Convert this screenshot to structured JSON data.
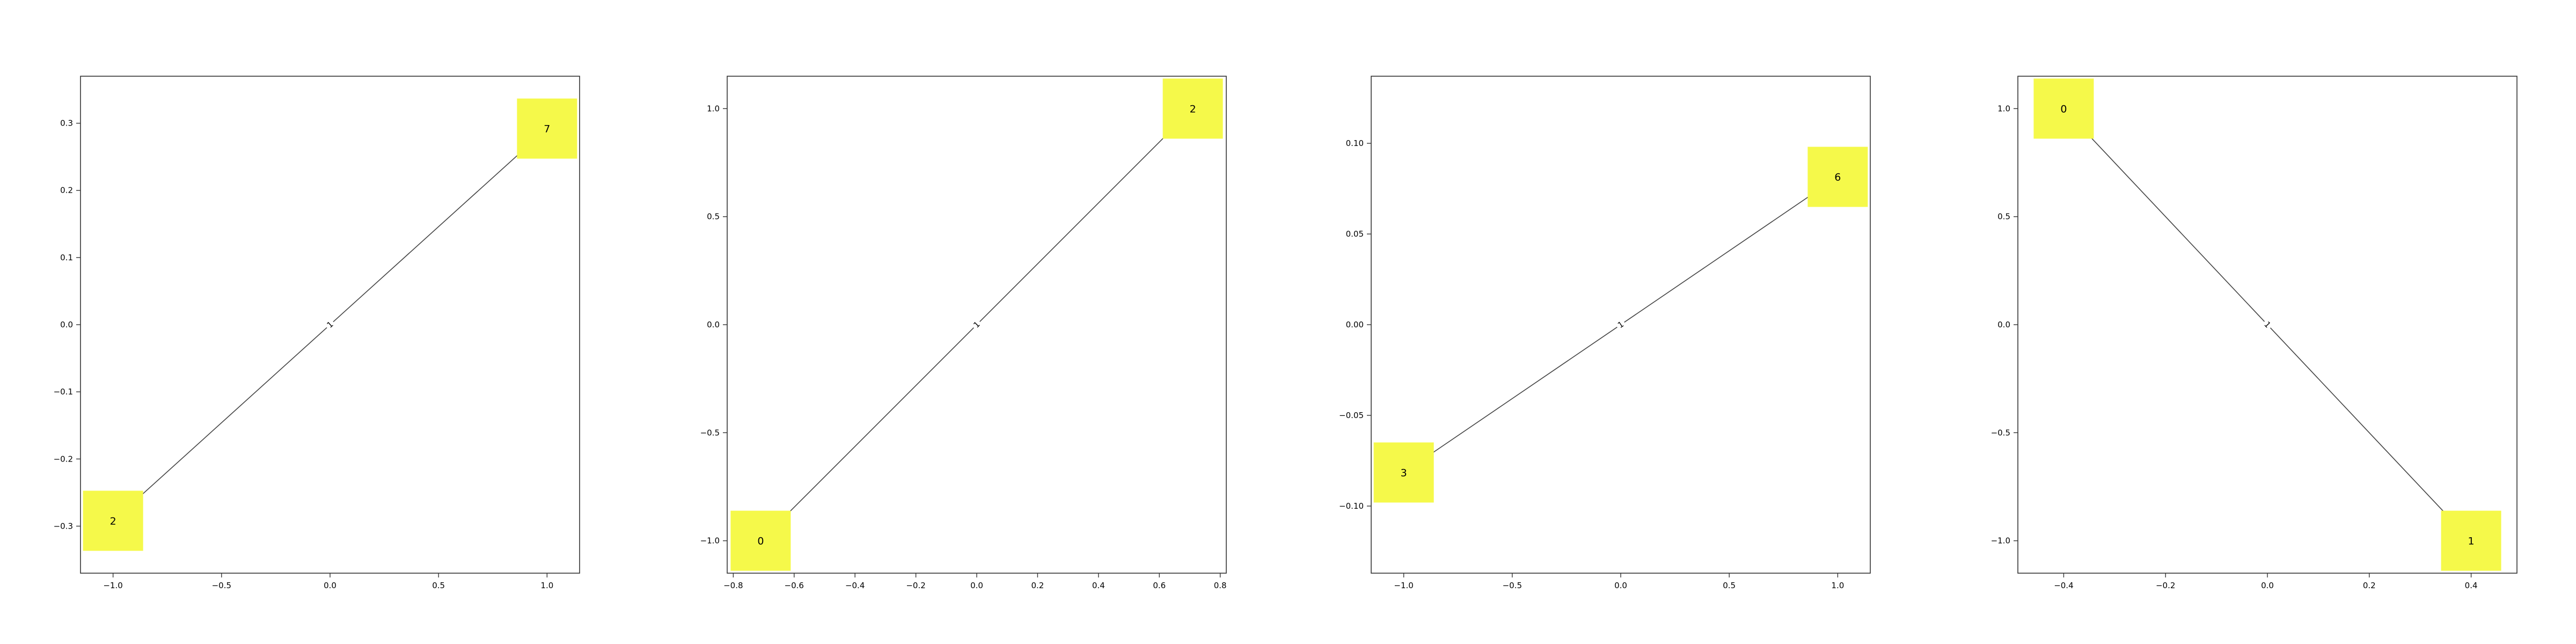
{
  "colors": {
    "node_fill": "#f5f94a",
    "edge": "#444444",
    "axes": "#333333",
    "background": "#ffffff"
  },
  "panels": [
    {
      "xlim": [
        -1.15,
        1.15
      ],
      "ylim": [
        -0.37,
        0.37
      ],
      "xticks": [
        -1.0,
        -0.5,
        0.0,
        0.5,
        1.0
      ],
      "xtick_labels": [
        "−1.0",
        "−0.5",
        "0.0",
        "0.5",
        "1.0"
      ],
      "yticks": [
        -0.3,
        -0.2,
        -0.1,
        0.0,
        0.1,
        0.2,
        0.3
      ],
      "ytick_labels": [
        "−0.3",
        "−0.2",
        "−0.1",
        "0.0",
        "0.1",
        "0.2",
        "0.3"
      ],
      "nodes": [
        {
          "label": "2",
          "x": -1.0,
          "y": -0.292
        },
        {
          "label": "7",
          "x": 1.0,
          "y": 0.292
        }
      ],
      "edge_label": "1"
    },
    {
      "xlim": [
        -0.82,
        0.82
      ],
      "ylim": [
        -1.15,
        1.15
      ],
      "xticks": [
        -0.8,
        -0.6,
        -0.4,
        -0.2,
        0.0,
        0.2,
        0.4,
        0.6,
        0.8
      ],
      "xtick_labels": [
        "−0.8",
        "−0.6",
        "−0.4",
        "−0.2",
        "0.0",
        "0.2",
        "0.4",
        "0.6",
        "0.8"
      ],
      "yticks": [
        -1.0,
        -0.5,
        0.0,
        0.5,
        1.0
      ],
      "ytick_labels": [
        "−1.0",
        "−0.5",
        "0.0",
        "0.5",
        "1.0"
      ],
      "nodes": [
        {
          "label": "0",
          "x": -0.71,
          "y": -1.0
        },
        {
          "label": "2",
          "x": 0.71,
          "y": 1.0
        }
      ],
      "edge_label": "1"
    },
    {
      "xlim": [
        -1.15,
        1.15
      ],
      "ylim": [
        -0.137,
        0.137
      ],
      "xticks": [
        -1.0,
        -0.5,
        0.0,
        0.5,
        1.0
      ],
      "xtick_labels": [
        "−1.0",
        "−0.5",
        "0.0",
        "0.5",
        "1.0"
      ],
      "yticks": [
        -0.1,
        -0.05,
        0.0,
        0.05,
        0.1
      ],
      "ytick_labels": [
        "−0.10",
        "−0.05",
        "0.00",
        "0.05",
        "0.10"
      ],
      "nodes": [
        {
          "label": "3",
          "x": -1.0,
          "y": -0.0815
        },
        {
          "label": "6",
          "x": 1.0,
          "y": 0.0815
        }
      ],
      "edge_label": "1"
    },
    {
      "xlim": [
        -0.49,
        0.49
      ],
      "ylim": [
        -1.15,
        1.15
      ],
      "xticks": [
        -0.4,
        -0.2,
        0.0,
        0.2,
        0.4
      ],
      "xtick_labels": [
        "−0.4",
        "−0.2",
        "0.0",
        "0.2",
        "0.4"
      ],
      "yticks": [
        -1.0,
        -0.5,
        0.0,
        0.5,
        1.0
      ],
      "ytick_labels": [
        "−1.0",
        "−0.5",
        "0.0",
        "0.5",
        "1.0"
      ],
      "nodes": [
        {
          "label": "0",
          "x": -0.4,
          "y": 1.0
        },
        {
          "label": "1",
          "x": 0.4,
          "y": -1.0
        }
      ],
      "edge_label": "1"
    }
  ]
}
